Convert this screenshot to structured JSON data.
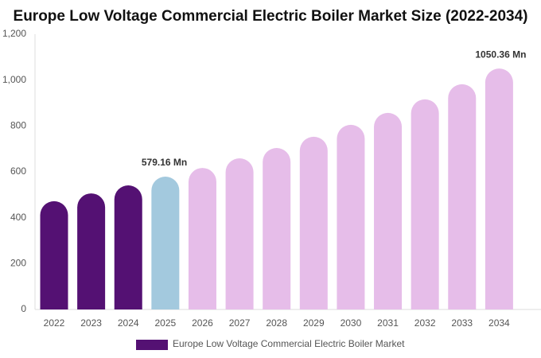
{
  "chart_data": {
    "type": "bar",
    "title": "Europe Low Voltage Commercial Electric Boiler Market Size (2022-2034)",
    "categories": [
      "2022",
      "2023",
      "2024",
      "2025",
      "2026",
      "2027",
      "2028",
      "2029",
      "2030",
      "2031",
      "2032",
      "2033",
      "2034"
    ],
    "series": [
      {
        "name": "Europe Low Voltage Commercial Electric Boiler Market",
        "color": "#541173",
        "values": [
          472,
          506,
          541,
          579.16,
          617,
          659,
          704,
          753,
          805,
          857,
          916,
          982,
          1050.36
        ],
        "value_labels": [
          null,
          null,
          null,
          "579.16 Mn",
          null,
          null,
          null,
          null,
          null,
          null,
          null,
          null,
          "1050.36 Mn"
        ],
        "colors": [
          "#541173",
          "#541173",
          "#541173",
          "#a3c9de",
          "#e6bde9",
          "#e6bde9",
          "#e6bde9",
          "#e6bde9",
          "#e6bde9",
          "#e6bde9",
          "#e6bde9",
          "#e6bde9",
          "#e6bde9"
        ]
      }
    ],
    "ylim": [
      0,
      1200
    ],
    "yticks": [
      0,
      200,
      400,
      600,
      800,
      {
        "value": 1000,
        "label": "1,000"
      },
      {
        "value": 1200,
        "label": "1,200"
      }
    ],
    "grid": false
  }
}
